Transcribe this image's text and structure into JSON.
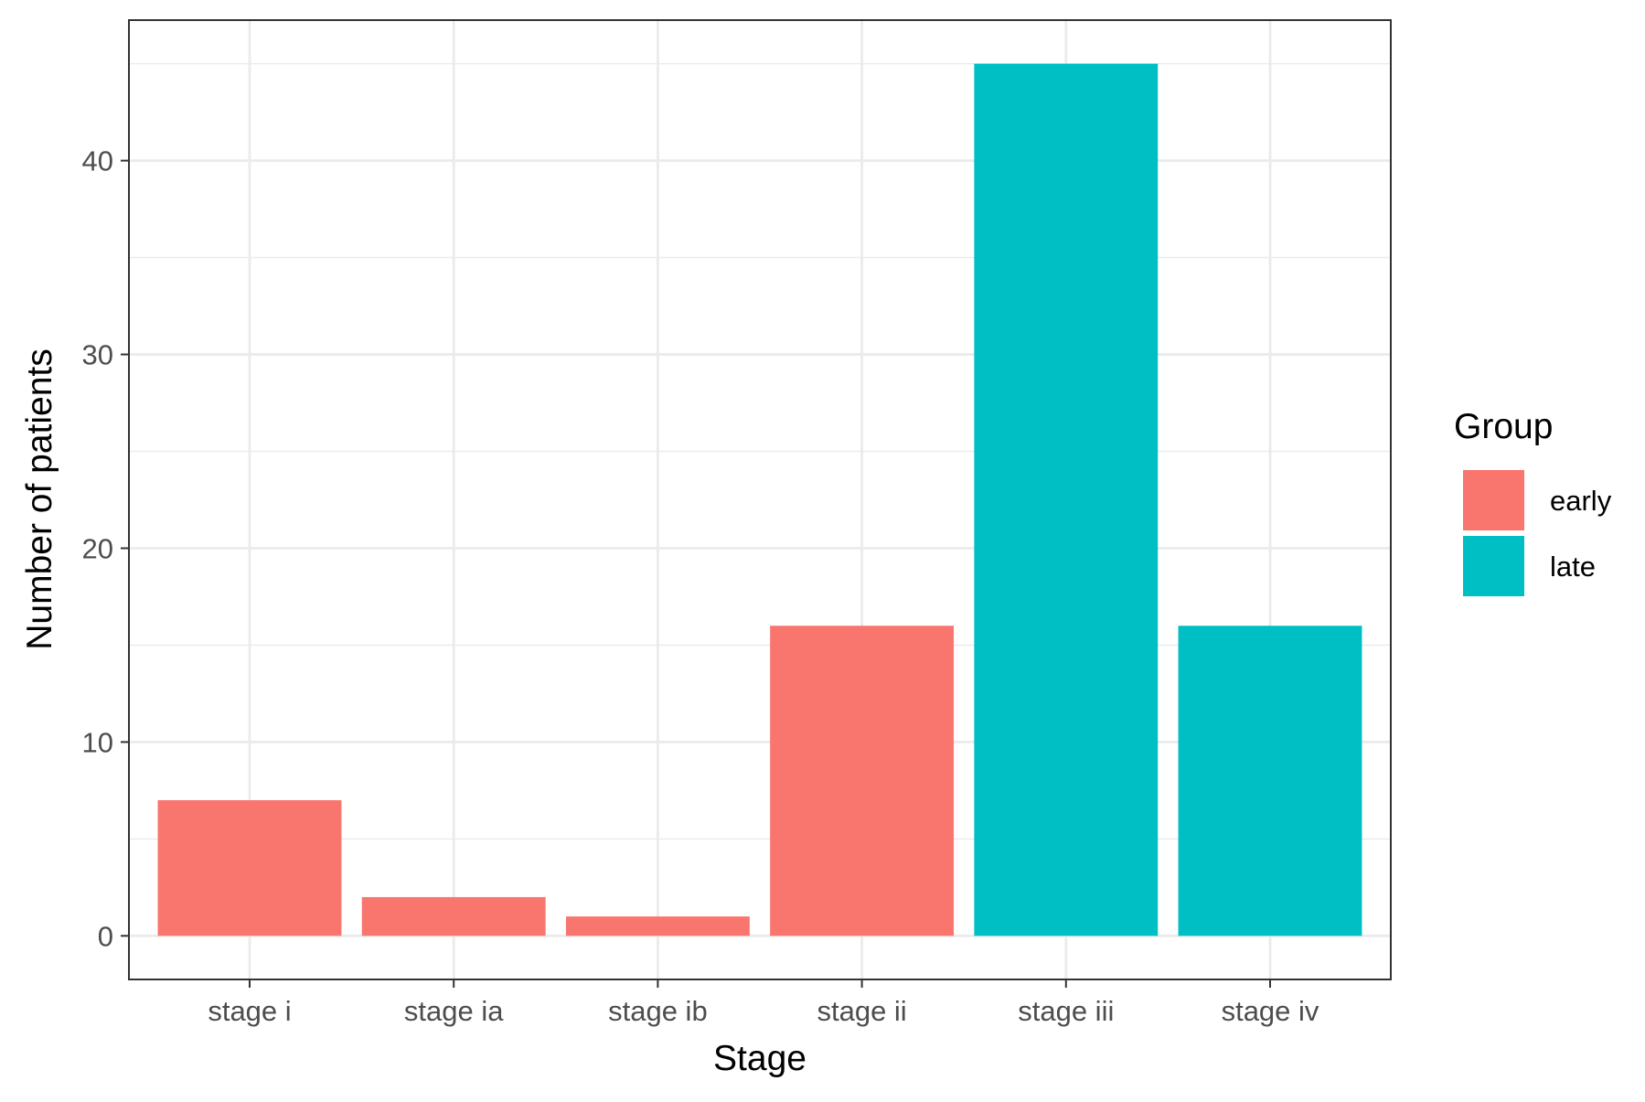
{
  "chart_data": {
    "type": "bar",
    "title": "",
    "xlabel": "Stage",
    "ylabel": "Number of patients",
    "categories": [
      "stage i",
      "stage ia",
      "stage ib",
      "stage ii",
      "stage iii",
      "stage iv"
    ],
    "values": [
      7,
      2,
      1,
      16,
      45,
      16
    ],
    "groups": [
      "early",
      "early",
      "early",
      "early",
      "late",
      "late"
    ],
    "ylim": [
      -2.25,
      47.25
    ],
    "yticks": [
      0,
      10,
      20,
      30,
      40
    ],
    "ytick_labels": [
      "0",
      "10",
      "20",
      "30",
      "40"
    ],
    "grid": true,
    "legend": {
      "title": "Group",
      "position": "right",
      "entries": [
        {
          "label": "early",
          "color": "#F8766D"
        },
        {
          "label": "late",
          "color": "#00BFC4"
        }
      ]
    }
  }
}
